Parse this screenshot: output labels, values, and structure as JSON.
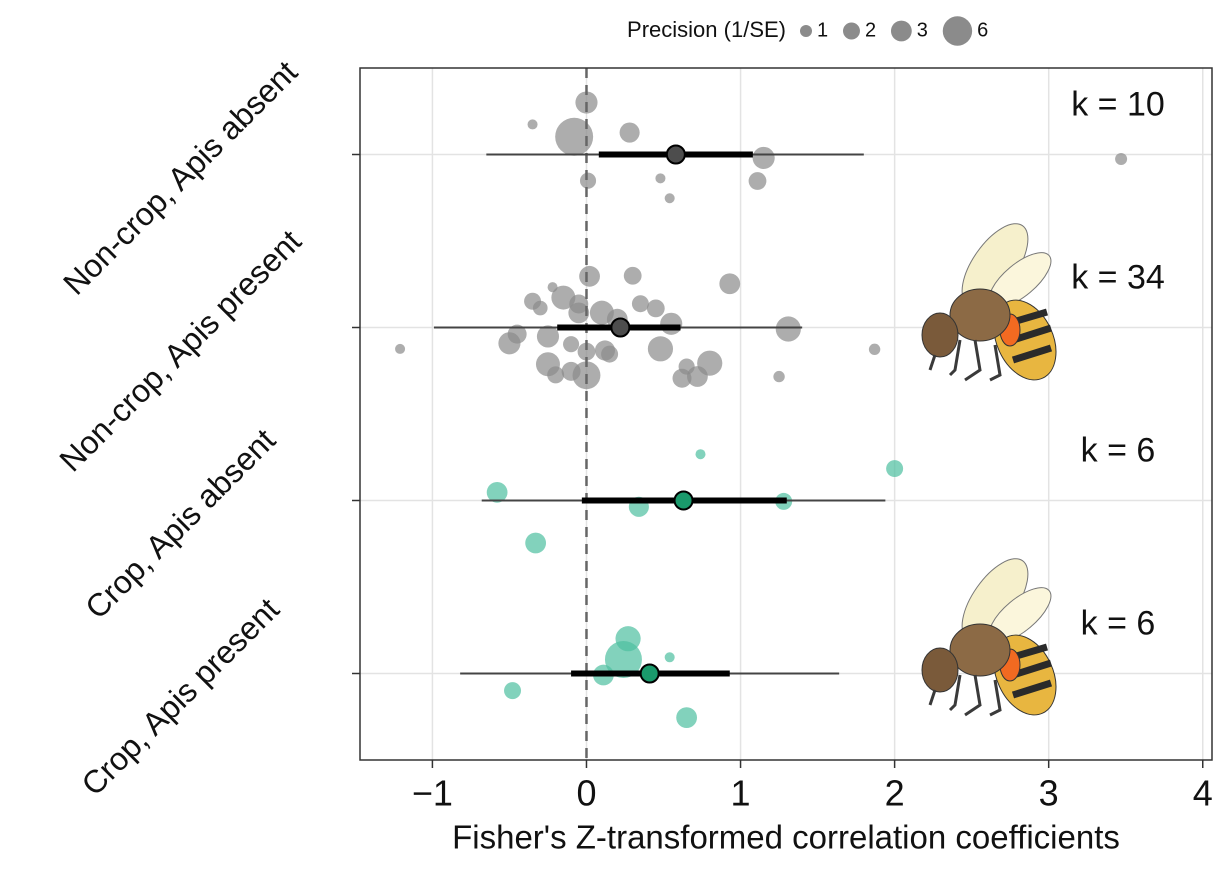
{
  "chart_data": {
    "type": "orchard",
    "x_label": "Fisher's Z-transformed correlation coefficients",
    "legend_title": "Precision (1/SE)",
    "size_legend": [
      1,
      2,
      3,
      6
    ],
    "xlim": [
      -1.47,
      4.06
    ],
    "xticks": [
      {
        "value": -1,
        "label": "−1"
      },
      0,
      1,
      2,
      3,
      4
    ],
    "grid": true,
    "zero_line": true,
    "groups": [
      {
        "name": "Non-crop, Apis absent",
        "k_label": "k = 10",
        "color": "#8a8a8a",
        "mean_color": "#4d4d4d",
        "mean": 0.58,
        "ci": [
          0.08,
          1.08
        ],
        "pi": [
          -0.65,
          1.8
        ],
        "x": [
          0.0,
          0.54,
          0.28,
          -0.35,
          0.48,
          1.15,
          -0.08,
          0.01,
          1.11,
          3.47
        ],
        "precision": [
          3.4,
          0.7,
          2.8,
          0.7,
          0.7,
          3.4,
          10,
          1.8,
          2.2,
          1
        ]
      },
      {
        "name": "Non-crop, Apis present",
        "k_label": "k = 34",
        "color": "#8a8a8a",
        "mean_color": "#4d4d4d",
        "mean": 0.22,
        "ci": [
          -0.19,
          0.61
        ],
        "pi": [
          -0.99,
          1.4
        ],
        "x": [
          -1.21,
          -0.5,
          -0.25,
          -0.15,
          -0.05,
          0.0,
          0.12,
          0.3,
          0.48,
          0.55,
          0.72,
          0.8,
          0.93,
          1.31,
          1.25,
          1.87,
          -0.1,
          -0.25,
          0.0,
          -0.2,
          0.1,
          0.45,
          0.65,
          -0.3,
          -0.22,
          -0.05,
          0.2,
          0.35,
          0.62,
          -0.45,
          0.15,
          -0.1,
          0.02,
          -0.35
        ],
        "precision": [
          0.7,
          3.4,
          4,
          4,
          3,
          2.2,
          2.8,
          2.2,
          4.4,
          3.4,
          3,
          4.4,
          3,
          4.4,
          0.9,
          0.9,
          1.8,
          3.4,
          5.4,
          2,
          4,
          2.2,
          1.8,
          1.5,
          0.7,
          2.5,
          3,
          2,
          2.5,
          2.5,
          2,
          2.5,
          3,
          2
        ]
      },
      {
        "name": "Crop, Apis absent",
        "k_label": "k = 6",
        "color": "#4dbf9f",
        "mean_color": "#1a9a6c",
        "mean": 0.63,
        "ci": [
          -0.03,
          1.3
        ],
        "pi": [
          -0.68,
          1.94
        ],
        "x": [
          0.34,
          1.28,
          -0.58,
          2.0,
          -0.33,
          0.74
        ],
        "precision": [
          2.8,
          2,
          3,
          2,
          3,
          0.7
        ]
      },
      {
        "name": "Crop, Apis present",
        "k_label": "k = 6",
        "color": "#4dbf9f",
        "mean_color": "#1a9a6c",
        "mean": 0.41,
        "ci": [
          -0.1,
          0.93
        ],
        "pi": [
          -0.82,
          1.64
        ],
        "x": [
          0.24,
          0.54,
          -0.48,
          0.65,
          0.11,
          0.27
        ],
        "precision": [
          9.5,
          0.7,
          2,
          3,
          3,
          4.4
        ]
      }
    ]
  }
}
